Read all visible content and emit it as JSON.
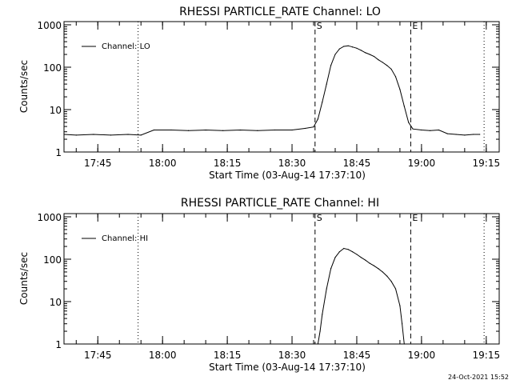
{
  "chart_data": [
    {
      "type": "line",
      "title": "RHESSI PARTICLE_RATE Channel: LO",
      "xlabel": "Start Time (03-Aug-14 17:37:10)",
      "ylabel": "Counts/sec",
      "yscale": "log",
      "ylim": [
        1,
        1000
      ],
      "yticks": [
        1,
        10,
        100,
        1000
      ],
      "ytick_labels": [
        "1",
        "10",
        "100",
        "1000"
      ],
      "xlim": [
        "17:37:10",
        "19:18:00"
      ],
      "xticks": [
        "17:45",
        "18:00",
        "18:15",
        "18:30",
        "18:45",
        "19:00",
        "19:15"
      ],
      "legend": {
        "position": "top-left",
        "entries": [
          "Channel: LO"
        ]
      },
      "markers": [
        {
          "time": "17:54:20",
          "style": "dotted",
          "label": ""
        },
        {
          "time": "18:35:20",
          "style": "dashed",
          "label": "S"
        },
        {
          "time": "18:57:30",
          "style": "dashed",
          "label": "E"
        },
        {
          "time": "19:14:30",
          "style": "dotted",
          "label": ""
        }
      ],
      "series": [
        {
          "name": "Channel: LO",
          "x": [
            "17:37:10",
            "17:40:00",
            "17:44:00",
            "17:48:00",
            "17:52:00",
            "17:55:00",
            "17:58:00",
            "18:02:00",
            "18:06:00",
            "18:10:00",
            "18:14:00",
            "18:18:00",
            "18:22:00",
            "18:26:00",
            "18:30:00",
            "18:33:00",
            "18:35:00",
            "18:36:00",
            "18:37:00",
            "18:38:00",
            "18:39:00",
            "18:40:00",
            "18:41:00",
            "18:42:00",
            "18:43:00",
            "18:44:00",
            "18:45:00",
            "18:46:00",
            "18:47:00",
            "18:48:00",
            "18:49:00",
            "18:50:00",
            "18:51:00",
            "18:52:00",
            "18:53:00",
            "18:54:00",
            "18:55:00",
            "18:56:00",
            "18:57:00",
            "18:58:00",
            "19:00:00",
            "19:02:00",
            "19:04:00",
            "19:06:00",
            "19:08:00",
            "19:10:00",
            "19:12:00",
            "19:13:30"
          ],
          "y": [
            2.6,
            2.5,
            2.6,
            2.5,
            2.6,
            2.5,
            3.3,
            3.3,
            3.2,
            3.3,
            3.2,
            3.3,
            3.2,
            3.3,
            3.3,
            3.6,
            3.9,
            6,
            15,
            40,
            110,
            200,
            270,
            310,
            320,
            300,
            280,
            250,
            220,
            200,
            180,
            150,
            130,
            110,
            90,
            60,
            30,
            12,
            5,
            3.5,
            3.3,
            3.2,
            3.3,
            2.7,
            2.6,
            2.5,
            2.6,
            2.6
          ]
        }
      ]
    },
    {
      "type": "line",
      "title": "RHESSI PARTICLE_RATE Channel: HI",
      "xlabel": "Start Time (03-Aug-14 17:37:10)",
      "ylabel": "Counts/sec",
      "yscale": "log",
      "ylim": [
        1,
        1000
      ],
      "yticks": [
        1,
        10,
        100,
        1000
      ],
      "ytick_labels": [
        "1",
        "10",
        "100",
        "1000"
      ],
      "xlim": [
        "17:37:10",
        "19:18:00"
      ],
      "xticks": [
        "17:45",
        "18:00",
        "18:15",
        "18:30",
        "18:45",
        "19:00",
        "19:15"
      ],
      "legend": {
        "position": "top-left",
        "entries": [
          "Channel: HI"
        ]
      },
      "markers": [
        {
          "time": "17:54:20",
          "style": "dotted",
          "label": ""
        },
        {
          "time": "18:35:20",
          "style": "dashed",
          "label": "S"
        },
        {
          "time": "18:57:30",
          "style": "dashed",
          "label": "E"
        },
        {
          "time": "19:14:30",
          "style": "dotted",
          "label": ""
        }
      ],
      "series": [
        {
          "name": "Channel: HI",
          "x": [
            "18:36:00",
            "18:36:30",
            "18:37:00",
            "18:38:00",
            "18:39:00",
            "18:40:00",
            "18:41:00",
            "18:42:00",
            "18:43:00",
            "18:44:00",
            "18:45:00",
            "18:46:00",
            "18:47:00",
            "18:48:00",
            "18:49:00",
            "18:50:00",
            "18:51:00",
            "18:52:00",
            "18:53:00",
            "18:54:00",
            "18:55:00",
            "18:55:30",
            "18:56:00"
          ],
          "y": [
            1,
            2,
            5,
            20,
            60,
            110,
            150,
            180,
            170,
            150,
            130,
            110,
            95,
            80,
            70,
            60,
            50,
            40,
            30,
            20,
            8,
            3,
            1
          ]
        }
      ]
    }
  ],
  "footer": {
    "timestamp": "24-Oct-2021 15:52"
  }
}
